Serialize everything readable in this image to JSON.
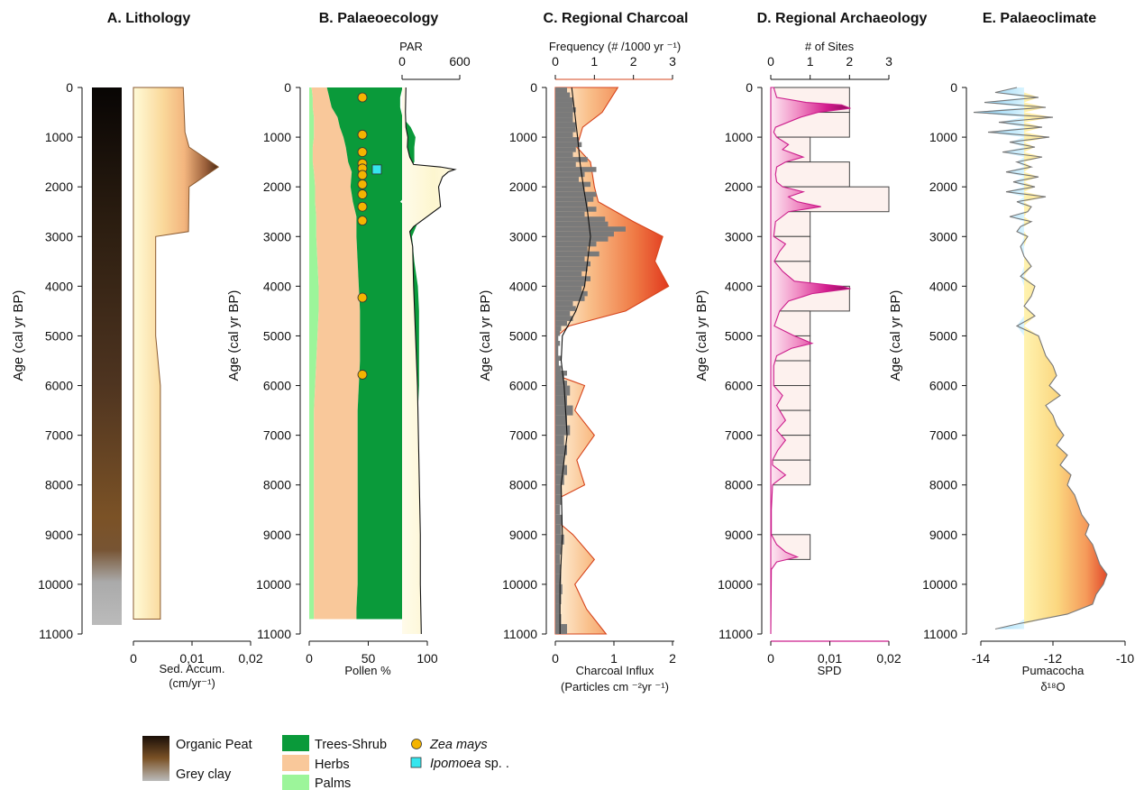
{
  "figure": {
    "y_axis_label": "Age (cal yr BP)",
    "age_ticks": [
      "0",
      "1000",
      "2000",
      "3000",
      "4000",
      "5000",
      "6000",
      "7000",
      "8000",
      "9000",
      "10000",
      "11000"
    ]
  },
  "colors": {
    "trees_shrub": "#0a9a3a",
    "herbs": "#f9c89a",
    "palms": "#9cf59a",
    "zea_mays": "#f4b400",
    "ipomoea": "#35e6ee",
    "charcoal_hist": "#7a7a7a",
    "frequency_line": "#d6441c",
    "spd": "#cc1e8c",
    "climate_line": "#777777"
  },
  "panels": {
    "A": {
      "title": "A. Lithology",
      "xlabel_1": "Sed. Accum.",
      "xlabel_2": "(cm/yr⁻¹)",
      "xticks": [
        "0",
        "0,01",
        "0,02"
      ]
    },
    "B": {
      "title": "B. Palaeoecology",
      "xlabel": "Pollen %",
      "xticks": [
        "0",
        "50",
        "100"
      ],
      "top_label": "PAR",
      "top_ticks": [
        "0",
        "600"
      ]
    },
    "C": {
      "title": "C. Regional Charcoal",
      "top_label": "Frequency (# /1000 yr ⁻¹)",
      "top_ticks": [
        "0",
        "1",
        "2",
        "3"
      ],
      "xticks": [
        "0",
        "1",
        "2"
      ],
      "xlabel_1": "Charcoal Influx",
      "xlabel_2": "(Particles cm ⁻²yr ⁻¹)"
    },
    "D": {
      "title": "D. Regional Archaeology",
      "top_label": "# of Sites",
      "top_ticks": [
        "0",
        "1",
        "2",
        "3"
      ],
      "xticks": [
        "0",
        "0,01",
        "0,02"
      ],
      "xlabel": "SPD"
    },
    "E": {
      "title": "E. Palaeoclimate",
      "xticks": [
        "-14",
        "-12",
        "-10"
      ],
      "xlabel_1": "Pumacocha",
      "xlabel_2": "δ¹⁸O"
    }
  },
  "legend": {
    "organic_peat": "Organic Peat",
    "grey_clay": "Grey clay",
    "trees_shrub": "Trees-Shrub",
    "herbs": "Herbs",
    "palms": "Palms",
    "zea_mays": "Zea mays",
    "ipomoea": "Ipomoea",
    "ipomoea_suffix": " sp. ."
  },
  "chart_data": [
    {
      "type": "area",
      "panel": "A. Lithology",
      "xlabel": "Sed. Accum. (cm/yr⁻¹)",
      "ylabel": "Age (cal yr BP)",
      "ylim": [
        0,
        11000
      ],
      "xlim": [
        0,
        0.02
      ],
      "lithology": [
        {
          "unit": "Organic Peat",
          "from_age": 0,
          "to_age": 9300
        },
        {
          "unit": "Grey clay",
          "from_age": 9300,
          "to_age": 10850
        }
      ],
      "sed_accumulation": {
        "age": [
          0,
          900,
          1200,
          1600,
          2000,
          2900,
          3000,
          5000,
          6000,
          10700
        ],
        "value": [
          0.0085,
          0.0088,
          0.0095,
          0.0145,
          0.0095,
          0.0094,
          0.0038,
          0.0038,
          0.0046,
          0.0046
        ]
      }
    },
    {
      "type": "area",
      "panel": "B. Palaeoecology",
      "xlabel": "Pollen %",
      "ylabel": "Age (cal yr BP)",
      "ylim": [
        0,
        11000
      ],
      "xlim": [
        0,
        100
      ],
      "age": [
        0,
        200,
        400,
        600,
        800,
        1000,
        1200,
        1500,
        1700,
        2000,
        2300,
        2600,
        3000,
        3500,
        4000,
        4500,
        5000,
        5500,
        6000,
        6500,
        7000,
        7500,
        8000,
        8500,
        9000,
        9500,
        10000,
        10500,
        10700
      ],
      "series": [
        {
          "name": "Palms",
          "values": [
            2,
            3,
            3,
            4,
            4,
            4,
            3,
            3,
            4,
            5,
            5,
            6,
            6,
            7,
            8,
            8,
            7,
            6,
            5,
            4,
            4,
            4,
            4,
            4,
            4,
            4,
            4,
            4,
            4
          ]
        },
        {
          "name": "Herbs",
          "values": [
            13,
            14,
            16,
            20,
            22,
            25,
            28,
            30,
            32,
            30,
            32,
            34,
            34,
            34,
            34,
            35,
            36,
            37,
            37,
            37,
            37,
            37,
            37,
            37,
            37,
            37,
            37,
            36,
            36
          ]
        },
        {
          "name": "Trees-Shrub",
          "values": [
            64,
            60,
            58,
            55,
            60,
            61,
            58,
            56,
            47,
            54,
            40,
            54,
            47,
            48,
            50,
            50,
            50,
            50,
            51,
            51,
            51,
            51,
            51,
            51,
            51,
            51,
            51,
            50,
            50
          ]
        }
      ],
      "zea_mays_ages": [
        200,
        950,
        1300,
        1530,
        1630,
        1760,
        1950,
        2150,
        2400,
        2680,
        4230,
        5780
      ],
      "ipomoea_ages": [
        1650
      ],
      "par": {
        "xlim": [
          0,
          600
        ],
        "age": [
          0,
          500,
          800,
          1000,
          1200,
          1400,
          1550,
          1600,
          1650,
          1700,
          1800,
          2000,
          2400,
          2800,
          2900,
          3000,
          3200,
          4000,
          5000,
          6000,
          7000,
          8000,
          9000,
          10000,
          11000
        ],
        "value": [
          40,
          35,
          40,
          60,
          55,
          80,
          120,
          400,
          550,
          480,
          420,
          380,
          400,
          120,
          80,
          90,
          110,
          120,
          140,
          160,
          170,
          180,
          190,
          190,
          200
        ]
      }
    },
    {
      "type": "area",
      "panel": "C. Regional Charcoal",
      "xlabel": "Charcoal Influx (Particles cm ⁻²yr ⁻¹)",
      "ylabel": "Age (cal yr BP)",
      "ylim": [
        0,
        11000
      ],
      "xlim": [
        0,
        2
      ],
      "top_xlabel": "Frequency (# /1000 yr ⁻¹)",
      "top_xlim": [
        0,
        3
      ],
      "frequency": {
        "age": [
          0,
          500,
          800,
          1200,
          1500,
          2000,
          2300,
          2700,
          3000,
          3500,
          4000,
          4500,
          4800,
          5000,
          5800,
          6000,
          6500,
          7000,
          7500,
          8000,
          8300,
          8700,
          9000,
          9500,
          10000,
          10500,
          11000
        ],
        "value": [
          1.6,
          1.2,
          0.7,
          0.55,
          0.9,
          1.0,
          1.1,
          2.0,
          2.75,
          2.55,
          2.9,
          1.8,
          0.35,
          0.05,
          0.05,
          0.75,
          0.5,
          1.0,
          0.55,
          0.75,
          0.0,
          0.0,
          0.45,
          1.0,
          0.5,
          0.8,
          1.3
        ]
      },
      "influx_smoothed": {
        "age": [
          0,
          500,
          1000,
          1500,
          2000,
          2500,
          3000,
          3500,
          4000,
          4500,
          5000,
          5500,
          6000,
          7000,
          8000,
          9000,
          10000,
          11000
        ],
        "value": [
          0.28,
          0.33,
          0.38,
          0.42,
          0.48,
          0.55,
          0.6,
          0.55,
          0.5,
          0.35,
          0.12,
          0.1,
          0.15,
          0.2,
          0.1,
          0.12,
          0.08,
          0.08
        ]
      },
      "influx_histogram": {
        "bin_size": 100,
        "age": [
          0,
          100,
          200,
          300,
          400,
          500,
          600,
          700,
          800,
          900,
          1000,
          1100,
          1200,
          1300,
          1400,
          1500,
          1600,
          1700,
          1800,
          1900,
          2000,
          2100,
          2200,
          2300,
          2400,
          2500,
          2600,
          2700,
          2800,
          2900,
          3000,
          3100,
          3200,
          3300,
          3400,
          3500,
          3600,
          3700,
          3800,
          3900,
          4000,
          4100,
          4200,
          4300,
          4400,
          4500,
          4600,
          4700,
          4800,
          4900,
          5000,
          5100,
          5200,
          5300,
          5400,
          5500,
          5600,
          5700,
          5800,
          5900,
          6000,
          6200,
          6400,
          6600,
          6800,
          7000,
          7200,
          7400,
          7600,
          7800,
          8000,
          8200,
          8400,
          8600,
          8800,
          9000,
          9200,
          9400,
          9600,
          9800,
          10000,
          10200,
          10400,
          10600,
          10800
        ],
        "value": [
          0.2,
          0.25,
          0.3,
          0.3,
          0.35,
          0.3,
          0.3,
          0.35,
          0.35,
          0.3,
          0.4,
          0.45,
          0.35,
          0.3,
          0.55,
          0.35,
          0.7,
          0.5,
          0.4,
          0.6,
          0.5,
          0.7,
          0.65,
          0.55,
          0.7,
          0.5,
          0.85,
          0.9,
          1.2,
          1.0,
          0.9,
          0.7,
          0.55,
          0.75,
          0.5,
          0.6,
          0.55,
          0.45,
          0.6,
          0.5,
          0.45,
          0.55,
          0.5,
          0.3,
          0.35,
          0.25,
          0.3,
          0.2,
          0.1,
          0.08,
          0.05,
          0.08,
          0.05,
          0.05,
          0.1,
          0.06,
          0.1,
          0.2,
          0.15,
          0.2,
          0.25,
          0.2,
          0.3,
          0.2,
          0.25,
          0.15,
          0.2,
          0.15,
          0.2,
          0.15,
          0.1,
          0.1,
          0.08,
          0.12,
          0.1,
          0.15,
          0.1,
          0.08,
          0.1,
          0.1,
          0.12,
          0.1,
          0.08,
          0.1,
          0.2
        ]
      }
    },
    {
      "type": "area",
      "panel": "D. Regional Archaeology",
      "xlabel": "SPD",
      "ylabel": "Age (cal yr BP)",
      "ylim": [
        0,
        11000
      ],
      "xlim": [
        0,
        0.02
      ],
      "top_xlabel": "# of Sites",
      "top_xlim": [
        0,
        3
      ],
      "sites_histogram": {
        "bin_edges": [
          0,
          500,
          1000,
          1500,
          2000,
          2500,
          3000,
          3500,
          4000,
          4500,
          5000,
          5500,
          6000,
          6500,
          7000,
          7500,
          8000,
          8500,
          9000,
          9500,
          10000,
          10500,
          11000
        ],
        "counts": [
          2,
          2,
          1,
          2,
          3,
          1,
          1,
          1,
          2,
          1,
          1,
          1,
          1,
          1,
          1,
          1,
          0,
          0,
          1,
          0,
          0,
          0
        ]
      },
      "spd": {
        "age": [
          0,
          200,
          300,
          350,
          420,
          500,
          600,
          800,
          900,
          1000,
          1150,
          1250,
          1400,
          1500,
          1600,
          1750,
          1900,
          2000,
          2100,
          2200,
          2300,
          2400,
          2500,
          2700,
          3000,
          3150,
          3300,
          3500,
          3700,
          3900,
          4000,
          4050,
          4150,
          4300,
          4500,
          4800,
          5000,
          5150,
          5250,
          5400,
          5600,
          6000,
          6200,
          6400,
          6700,
          6900,
          7100,
          7300,
          7500,
          7600,
          7800,
          7950,
          8000,
          8500,
          9000,
          9200,
          9350,
          9450,
          9550,
          9700,
          11000
        ],
        "value": [
          0.0005,
          0.001,
          0.006,
          0.012,
          0.0135,
          0.008,
          0.005,
          0.0008,
          0.0005,
          0.001,
          0.003,
          0.002,
          0.0055,
          0.0025,
          0.001,
          0.0008,
          0.001,
          0.002,
          0.0055,
          0.003,
          0.0045,
          0.0085,
          0.003,
          0.0008,
          0.0005,
          0.0025,
          0.0015,
          0.0006,
          0.002,
          0.004,
          0.012,
          0.0135,
          0.007,
          0.003,
          0.0015,
          0.0006,
          0.004,
          0.007,
          0.0035,
          0.001,
          0.0005,
          0.0005,
          0.002,
          0.001,
          0.0025,
          0.001,
          0.0025,
          0.0012,
          0.0003,
          0.0003,
          0.0025,
          0.0008,
          0.0003,
          0.0001,
          0.0001,
          0.001,
          0.0025,
          0.0045,
          0.001,
          0.0001,
          0.0
        ]
      }
    },
    {
      "type": "line",
      "panel": "E. Palaeoclimate",
      "xlabel": "Pumacocha δ¹⁸O",
      "ylabel": "Age (cal yr BP)",
      "ylim": [
        0,
        11000
      ],
      "xlim": [
        -14,
        -10
      ],
      "reference_value": -12.8,
      "age": [
        0,
        100,
        200,
        300,
        400,
        500,
        600,
        700,
        800,
        900,
        1000,
        1100,
        1200,
        1300,
        1400,
        1500,
        1600,
        1700,
        1800,
        1900,
        2000,
        2100,
        2200,
        2300,
        2400,
        2500,
        2600,
        2700,
        2800,
        2900,
        3000,
        3200,
        3400,
        3600,
        3800,
        4000,
        4200,
        4400,
        4600,
        4800,
        5000,
        5200,
        5400,
        5600,
        5800,
        6000,
        6200,
        6400,
        6600,
        6800,
        7000,
        7200,
        7400,
        7600,
        7800,
        8000,
        8200,
        8400,
        8600,
        8800,
        9000,
        9200,
        9400,
        9600,
        9800,
        10000,
        10200,
        10400,
        10600,
        10700,
        10800,
        10900
      ],
      "value": [
        -13.0,
        -13.6,
        -12.4,
        -13.9,
        -12.2,
        -14.2,
        -12.0,
        -13.5,
        -12.3,
        -13.8,
        -12.1,
        -13.2,
        -12.5,
        -13.4,
        -12.3,
        -13.0,
        -12.6,
        -13.3,
        -12.4,
        -13.1,
        -12.5,
        -13.3,
        -12.2,
        -13.0,
        -12.6,
        -12.7,
        -13.2,
        -12.6,
        -12.9,
        -13.0,
        -12.7,
        -12.9,
        -12.8,
        -12.6,
        -12.9,
        -12.5,
        -12.6,
        -12.8,
        -12.5,
        -13.0,
        -12.4,
        -12.3,
        -12.2,
        -12.0,
        -11.9,
        -12.1,
        -11.8,
        -12.2,
        -12.0,
        -11.9,
        -11.7,
        -11.9,
        -11.6,
        -11.8,
        -11.5,
        -11.6,
        -11.4,
        -11.3,
        -11.2,
        -11.0,
        -11.1,
        -10.9,
        -10.8,
        -10.7,
        -10.5,
        -10.6,
        -10.8,
        -10.9,
        -11.6,
        -12.3,
        -13.0,
        -13.6
      ]
    }
  ]
}
